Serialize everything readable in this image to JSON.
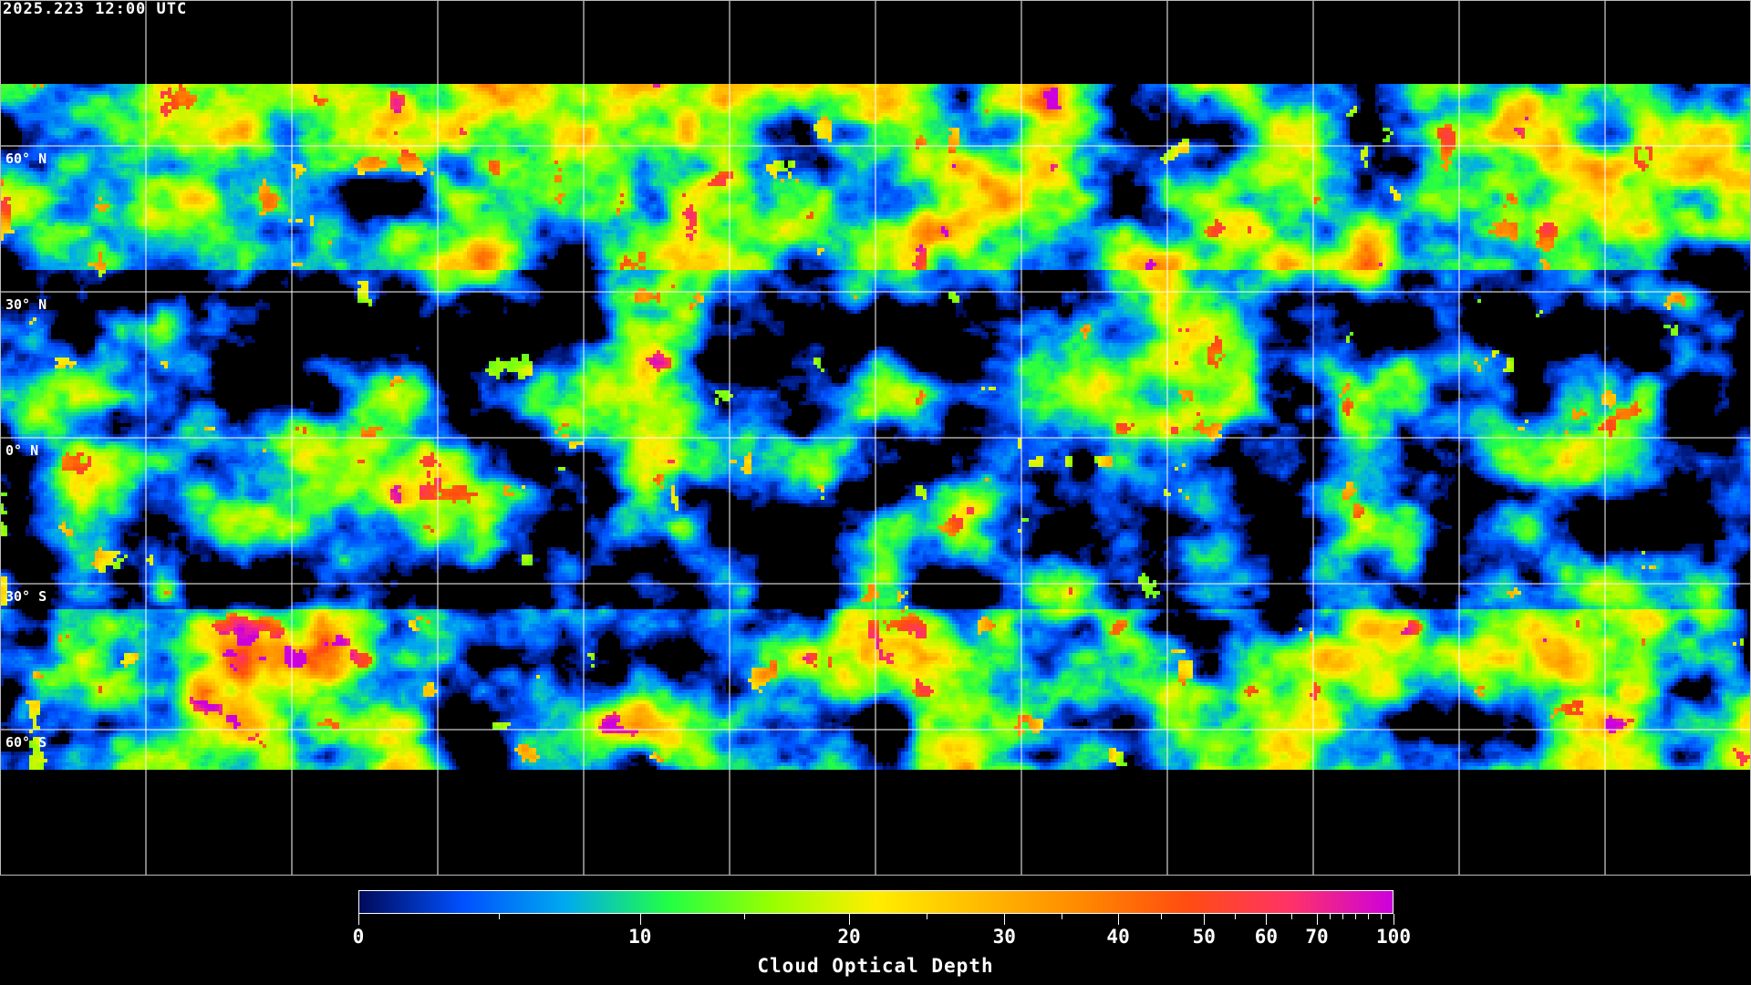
{
  "header": {
    "timestamp": "2025.223 12:00 UTC"
  },
  "map": {
    "projection": "equirectangular",
    "variable": "cloud optical depth",
    "graticule_spacing_deg": 30,
    "coastlines_color": "#ffffff",
    "gridline_color": "#ffffff",
    "no_data_color": "#000000",
    "lat_labels": [
      "60° N",
      "30° N",
      "0° N",
      "30° S",
      "60° S"
    ],
    "lat_values": [
      60,
      30,
      0,
      -30,
      -60
    ]
  },
  "colorbar": {
    "title": "Cloud Optical Depth",
    "range": [
      0,
      100
    ],
    "tick_labels": [
      "0",
      "10",
      "20",
      "30",
      "40",
      "50",
      "60",
      "70",
      "100"
    ],
    "tick_values": [
      0,
      10,
      20,
      30,
      40,
      50,
      60,
      70,
      100
    ],
    "minor_tick_values": [
      5,
      15,
      25,
      35,
      45,
      55,
      65,
      75,
      80,
      85,
      90,
      95
    ],
    "colors": [
      "#000a5a",
      "#0050ff",
      "#00aaee",
      "#22ff44",
      "#99ff00",
      "#ffee00",
      "#ffbb00",
      "#ff8800",
      "#ff4d10",
      "#ff3366",
      "#cc00dd"
    ]
  }
}
